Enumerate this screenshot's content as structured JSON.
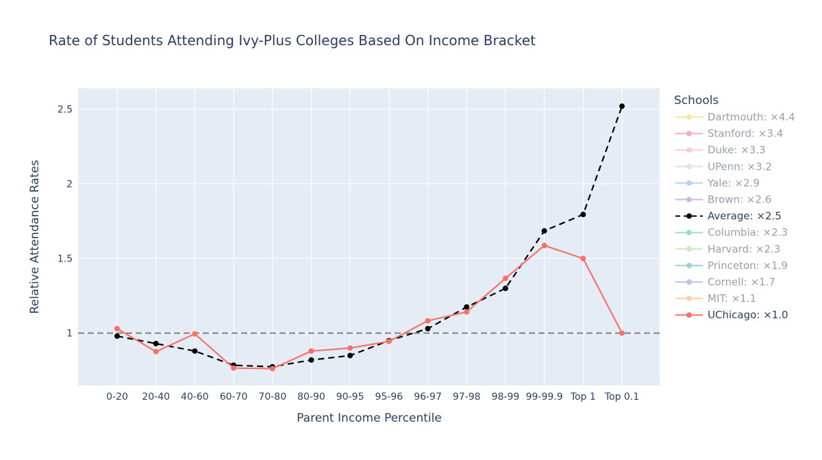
{
  "chart_data": {
    "type": "line",
    "title": "Rate of Students Attending Ivy-Plus Colleges Based On Income Bracket",
    "xlabel": "Parent Income Percentile",
    "ylabel": "Relative Attendance Rates",
    "categories": [
      "0-20",
      "20-40",
      "40-60",
      "60-70",
      "70-80",
      "80-90",
      "90-95",
      "95-96",
      "96-97",
      "97-98",
      "98-99",
      "99-99.9",
      "Top 1",
      "Top 0.1"
    ],
    "ylim": [
      0.65,
      2.64
    ],
    "yticks": [
      1,
      1.5,
      2,
      2.5
    ],
    "ytick_labels": [
      "1",
      "1.5",
      "2",
      "2.5"
    ],
    "grid": true,
    "reference_line": {
      "y": 1,
      "style": "dashed",
      "color": "#808080"
    },
    "legend": {
      "title": "Schools",
      "placement": "right",
      "entries": [
        {
          "name": "Dartmouth: ×4.4",
          "color": "#fecb52",
          "visible": false
        },
        {
          "name": "Stanford: ×3.4",
          "color": "#e45aa8",
          "visible": false
        },
        {
          "name": "Duke: ×3.3",
          "color": "#ff97ae",
          "visible": false
        },
        {
          "name": "UPenn: ×3.2",
          "color": "#c8c8b8",
          "visible": false
        },
        {
          "name": "Yale: ×2.9",
          "color": "#7aa0ff",
          "visible": false
        },
        {
          "name": "Brown: ×2.6",
          "color": "#a070c0",
          "visible": false
        },
        {
          "name": "Average: ×2.5",
          "color": "#000000",
          "visible": true,
          "dash": true
        },
        {
          "name": "Columbia: ×2.3",
          "color": "#40c090",
          "visible": false
        },
        {
          "name": "Harvard: ×2.3",
          "color": "#a0d080",
          "visible": false
        },
        {
          "name": "Princeton: ×1.9",
          "color": "#40a0b0",
          "visible": false
        },
        {
          "name": "Cornell: ×1.7",
          "color": "#7090d0",
          "visible": false
        },
        {
          "name": "MIT: ×1.1",
          "color": "#ffa15a",
          "visible": false
        },
        {
          "name": "UChicago: ×1.0",
          "color": "#f4726a",
          "visible": true
        }
      ]
    },
    "series": [
      {
        "name": "Average: ×2.5",
        "color": "#000000",
        "dash": true,
        "values": [
          0.98,
          0.93,
          0.88,
          0.785,
          0.775,
          0.82,
          0.85,
          0.95,
          1.03,
          1.175,
          1.3,
          1.685,
          1.795,
          2.52
        ]
      },
      {
        "name": "UChicago: ×1.0",
        "color": "#f4726a",
        "dash": false,
        "values": [
          1.03,
          0.876,
          0.995,
          0.766,
          0.762,
          0.88,
          0.9,
          0.945,
          1.083,
          1.142,
          1.367,
          1.587,
          1.5,
          1.0
        ]
      }
    ]
  }
}
